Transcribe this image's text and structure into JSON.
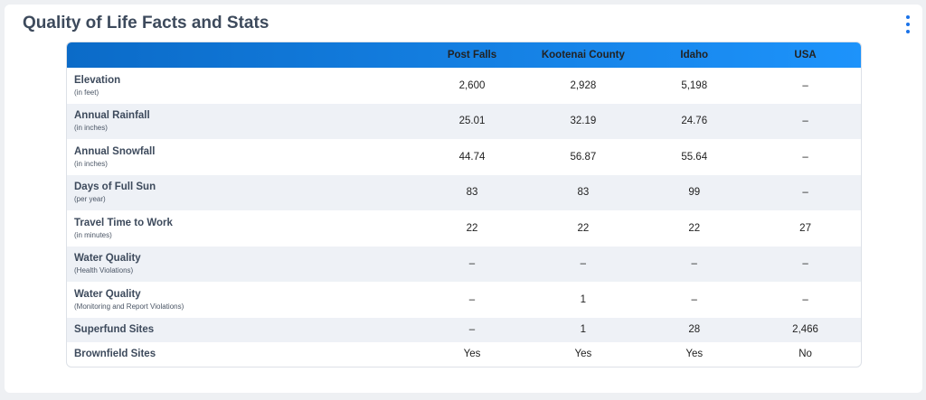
{
  "header": {
    "title": "Quality of Life Facts and Stats"
  },
  "table": {
    "columns": [
      "Post Falls",
      "Kootenai County",
      "Idaho",
      "USA"
    ],
    "rows": [
      {
        "label": "Elevation",
        "note": "(in feet)",
        "values": [
          "2,600",
          "2,928",
          "5,198",
          "–"
        ]
      },
      {
        "label": "Annual Rainfall",
        "note": "(in inches)",
        "values": [
          "25.01",
          "32.19",
          "24.76",
          "–"
        ]
      },
      {
        "label": "Annual Snowfall",
        "note": "(in inches)",
        "values": [
          "44.74",
          "56.87",
          "55.64",
          "–"
        ]
      },
      {
        "label": "Days of Full Sun",
        "note": "(per year)",
        "values": [
          "83",
          "83",
          "99",
          "–"
        ]
      },
      {
        "label": "Travel Time to Work",
        "note": "(in minutes)",
        "values": [
          "22",
          "22",
          "22",
          "27"
        ]
      },
      {
        "label": "Water Quality",
        "note": "(Health Violations)",
        "values": [
          "–",
          "–",
          "–",
          "–"
        ]
      },
      {
        "label": "Water Quality",
        "note": "(Monitoring and Report Violations)",
        "values": [
          "–",
          "1",
          "–",
          "–"
        ]
      },
      {
        "label": "Superfund Sites",
        "values": [
          "–",
          "1",
          "28",
          "2,466"
        ]
      },
      {
        "label": "Brownfield Sites",
        "values": [
          "Yes",
          "Yes",
          "Yes",
          "No"
        ]
      }
    ]
  }
}
